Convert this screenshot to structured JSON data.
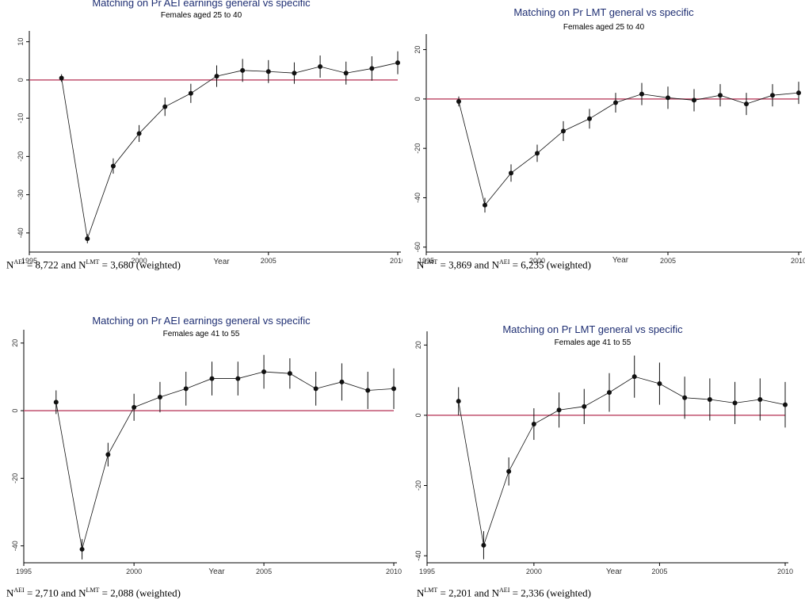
{
  "colors": {
    "title": "#1f2f73",
    "reference_line": "#c0506e",
    "series": "#111111",
    "axis": "#000000"
  },
  "chart_data": [
    {
      "type": "scatter",
      "title": "Matching on Pr AEI earnings general vs specific",
      "subtitle": "Females aged 25 to 40",
      "xlabel": "Year",
      "ylabel": "",
      "xlim": [
        1996,
        2010
      ],
      "ylim": [
        -45,
        12
      ],
      "xticks": [
        1995,
        2000,
        2005,
        2010
      ],
      "yticks": [
        10,
        0,
        -10,
        -20,
        -30,
        -40
      ],
      "reference_y": 0,
      "grid": false,
      "legend": "none",
      "x": [
        1997,
        1998,
        1999,
        2000,
        2001,
        2002,
        2003,
        2004,
        2005,
        2006,
        2007,
        2008,
        2009,
        2010
      ],
      "y": [
        0.5,
        -41.5,
        -22.5,
        -14,
        -7,
        -3.5,
        1,
        2.5,
        2.2,
        1.8,
        3.5,
        1.8,
        3,
        4.5
      ],
      "lower": [
        -0.5,
        -42.7,
        -24.5,
        -16.2,
        -9.4,
        -6,
        -1.8,
        -0.5,
        -0.8,
        -1,
        0.6,
        -1.2,
        -0.2,
        1.5
      ],
      "upper": [
        1.5,
        -40.3,
        -20.5,
        -11.8,
        -4.6,
        -1,
        3.8,
        5.5,
        5.2,
        4.6,
        6.4,
        4.8,
        6.2,
        7.5
      ]
    },
    {
      "type": "scatter",
      "title": "Matching on Pr LMT general vs specific",
      "subtitle": "Females aged 25 to 40",
      "xlabel": "Year",
      "ylabel": "",
      "xlim": [
        1996,
        2010
      ],
      "ylim": [
        -62,
        25
      ],
      "xticks": [
        1995,
        2000,
        2005,
        2010
      ],
      "yticks": [
        20,
        0,
        -20,
        -40,
        -60
      ],
      "reference_y": 0,
      "grid": false,
      "legend": "none",
      "x": [
        1997,
        1998,
        1999,
        2000,
        2001,
        2002,
        2003,
        2004,
        2005,
        2006,
        2007,
        2008,
        2009,
        2010
      ],
      "y": [
        -1,
        -43,
        -30,
        -22,
        -13,
        -8,
        -1.5,
        2,
        0.5,
        -0.5,
        1.5,
        -2,
        1.5,
        2.5
      ],
      "lower": [
        -3,
        -46,
        -33.5,
        -25.5,
        -17,
        -12,
        -5.5,
        -2.5,
        -4,
        -5,
        -3,
        -6.5,
        -3,
        -2
      ],
      "upper": [
        1,
        -40,
        -26.5,
        -18.5,
        -9,
        -4,
        2.5,
        6.5,
        5,
        4,
        6,
        2.5,
        6,
        7
      ]
    },
    {
      "type": "scatter",
      "title": "Matching on Pr AEI earnings general vs specific",
      "subtitle": "Females age 41 to 55",
      "xlabel": "Year",
      "ylabel": "",
      "xlim": [
        1996,
        2010
      ],
      "ylim": [
        -45,
        23
      ],
      "xticks": [
        1995,
        2000,
        2005,
        2010
      ],
      "yticks": [
        20,
        0,
        -20,
        -40
      ],
      "reference_y": 0,
      "grid": false,
      "legend": "none",
      "x": [
        1997,
        1998,
        1999,
        2000,
        2001,
        2002,
        2003,
        2004,
        2005,
        2006,
        2007,
        2008,
        2009,
        2010
      ],
      "y": [
        2.5,
        -41,
        -13,
        1,
        4,
        6.5,
        9.5,
        9.5,
        11.5,
        11,
        6.5,
        8.5,
        6,
        6.5
      ],
      "lower": [
        -1,
        -44,
        -16.5,
        -3,
        -0.5,
        1.5,
        4.5,
        4.5,
        6.5,
        6.5,
        1.5,
        3,
        0.5,
        0.5
      ],
      "upper": [
        6,
        -38,
        -9.5,
        5,
        8.5,
        11.5,
        14.5,
        14.5,
        16.5,
        15.5,
        11.5,
        14,
        11.5,
        12.5
      ]
    },
    {
      "type": "scatter",
      "title": "Matching on Pr LMT general vs specific",
      "subtitle": "Females age 41 to 55",
      "xlabel": "Year",
      "ylabel": "",
      "xlim": [
        1996,
        2010
      ],
      "ylim": [
        -42,
        23
      ],
      "xticks": [
        1995,
        2000,
        2005,
        2010
      ],
      "yticks": [
        20,
        0,
        -20,
        -40
      ],
      "reference_y": 0,
      "grid": false,
      "legend": "none",
      "x": [
        1997,
        1998,
        1999,
        2000,
        2001,
        2002,
        2003,
        2004,
        2005,
        2006,
        2007,
        2008,
        2009,
        2010
      ],
      "y": [
        4,
        -37,
        -16,
        -2.5,
        1.5,
        2.5,
        6.5,
        11,
        9,
        5,
        4.5,
        3.5,
        4.5,
        3
      ],
      "lower": [
        0,
        -41,
        -20,
        -7,
        -3.5,
        -2.5,
        1,
        5,
        3,
        -1,
        -1.5,
        -2.5,
        -1.5,
        -3.5
      ],
      "upper": [
        8,
        -33,
        -12,
        2,
        6.5,
        7.5,
        12,
        17,
        15,
        11,
        10.5,
        9.5,
        10.5,
        9.5
      ]
    }
  ],
  "notes": [
    {
      "n1": "N",
      "s1": "AEI",
      "v1": " = 8,722 and ",
      "n2": "N",
      "s2": "LMT",
      "v2": " = 3,680 (weighted)"
    },
    {
      "n1": "N",
      "s1": "LMT",
      "v1": " = 3,869 and ",
      "n2": "N",
      "s2": "AEI",
      "v2": " = 6,235 (weighted)"
    },
    {
      "n1": "N",
      "s1": "AEI",
      "v1": " = 2,710 and ",
      "n2": "N",
      "s2": "LMT",
      "v2": " = 2,088 (weighted)"
    },
    {
      "n1": "N",
      "s1": "LMT",
      "v1": " = 2,201 and ",
      "n2": "N",
      "s2": "AEI",
      "v2": " = 2,336 (weighted)"
    }
  ]
}
